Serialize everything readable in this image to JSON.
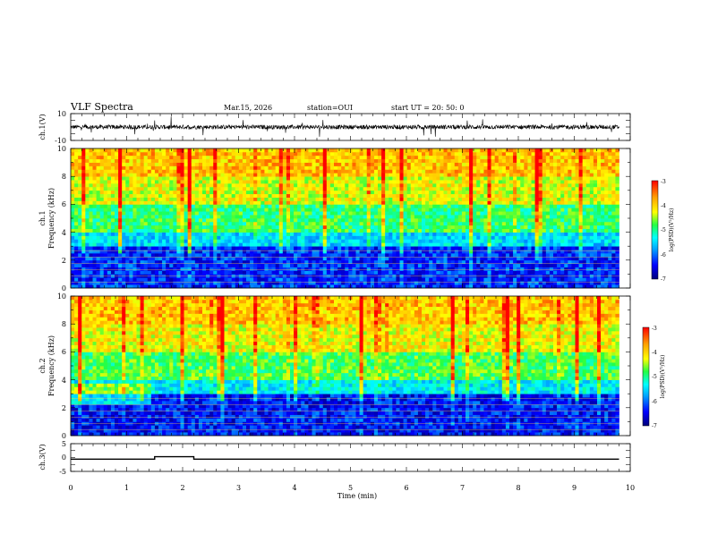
{
  "header": {
    "title": "VLF Spectra",
    "date": "Mar.15, 2026",
    "station": "station=OUI",
    "start": "start  UT =   20: 50: 0"
  },
  "colors": {
    "spectro_low": "#0a1a78",
    "spectro_high": "#e0251a",
    "colormap": [
      "#00007a",
      "#0000ff",
      "#00a0ff",
      "#00ffff",
      "#22ff44",
      "#ffff00",
      "#ffa000",
      "#ff0000"
    ]
  },
  "chart_data": [
    {
      "type": "line",
      "name": "ch1-waveform",
      "ylabel": "ch.1(V)",
      "ylim": [
        -10,
        10
      ],
      "yticks": [
        "10",
        "-10"
      ],
      "xlim": [
        0,
        10
      ],
      "baseline": 0,
      "note": "dense noise trace around 0 V across the interval"
    },
    {
      "type": "heatmap",
      "name": "ch1-spectrogram",
      "ylabel": "ch.1\nFrequency (kHz)",
      "xlim": [
        0,
        10
      ],
      "ylim": [
        0,
        10
      ],
      "yticks": [
        "0",
        "2",
        "4",
        "6",
        "8",
        "10"
      ],
      "data_end_min": 9.8,
      "bands_kHz": [
        {
          "from": 0,
          "to": 3,
          "level": -6.3
        },
        {
          "from": 3,
          "to": 4,
          "level": -5.5
        },
        {
          "from": 4,
          "to": 6,
          "level": -4.8
        },
        {
          "from": 6,
          "to": 8,
          "level": -4.2
        },
        {
          "from": 8,
          "to": 10,
          "level": -3.8
        }
      ],
      "colorbar": {
        "label": "log(PSD)(V²/Hz)",
        "range": [
          -7,
          -3
        ],
        "ticks": [
          "-3",
          "-4",
          "-5",
          "-6",
          "-7"
        ]
      }
    },
    {
      "type": "heatmap",
      "name": "ch2-spectrogram",
      "ylabel": "ch.2\nFrequency (kHz)",
      "xlim": [
        0,
        10
      ],
      "ylim": [
        0,
        10
      ],
      "yticks": [
        "0",
        "2",
        "4",
        "6",
        "8",
        "10"
      ],
      "data_end_min": 9.8,
      "bands_kHz": [
        {
          "from": 0,
          "to": 3,
          "level": -6.4
        },
        {
          "from": 3,
          "to": 4,
          "level": -5.4
        },
        {
          "from": 4,
          "to": 6,
          "level": -4.7
        },
        {
          "from": 6,
          "to": 8,
          "level": -4.1
        },
        {
          "from": 8,
          "to": 10,
          "level": -3.8
        }
      ],
      "colorbar": {
        "label": "log(PSD)(V²/Hz)",
        "range": [
          -7,
          -3
        ],
        "ticks": [
          "-3",
          "-4",
          "-5",
          "-6",
          "-7"
        ]
      }
    },
    {
      "type": "line",
      "name": "ch3-trace",
      "ylabel": "ch.3(V)",
      "xlabel": "Time (min)",
      "ylim": [
        -5,
        5
      ],
      "yticks": [
        "5",
        "0",
        "-5"
      ],
      "xlim": [
        0,
        10
      ],
      "xticks": [
        "0",
        "1",
        "2",
        "3",
        "4",
        "5",
        "6",
        "7",
        "8",
        "9",
        "10"
      ],
      "level": -0.6,
      "pulse": {
        "from": 1.5,
        "to": 2.2,
        "level": 0.3
      }
    }
  ]
}
